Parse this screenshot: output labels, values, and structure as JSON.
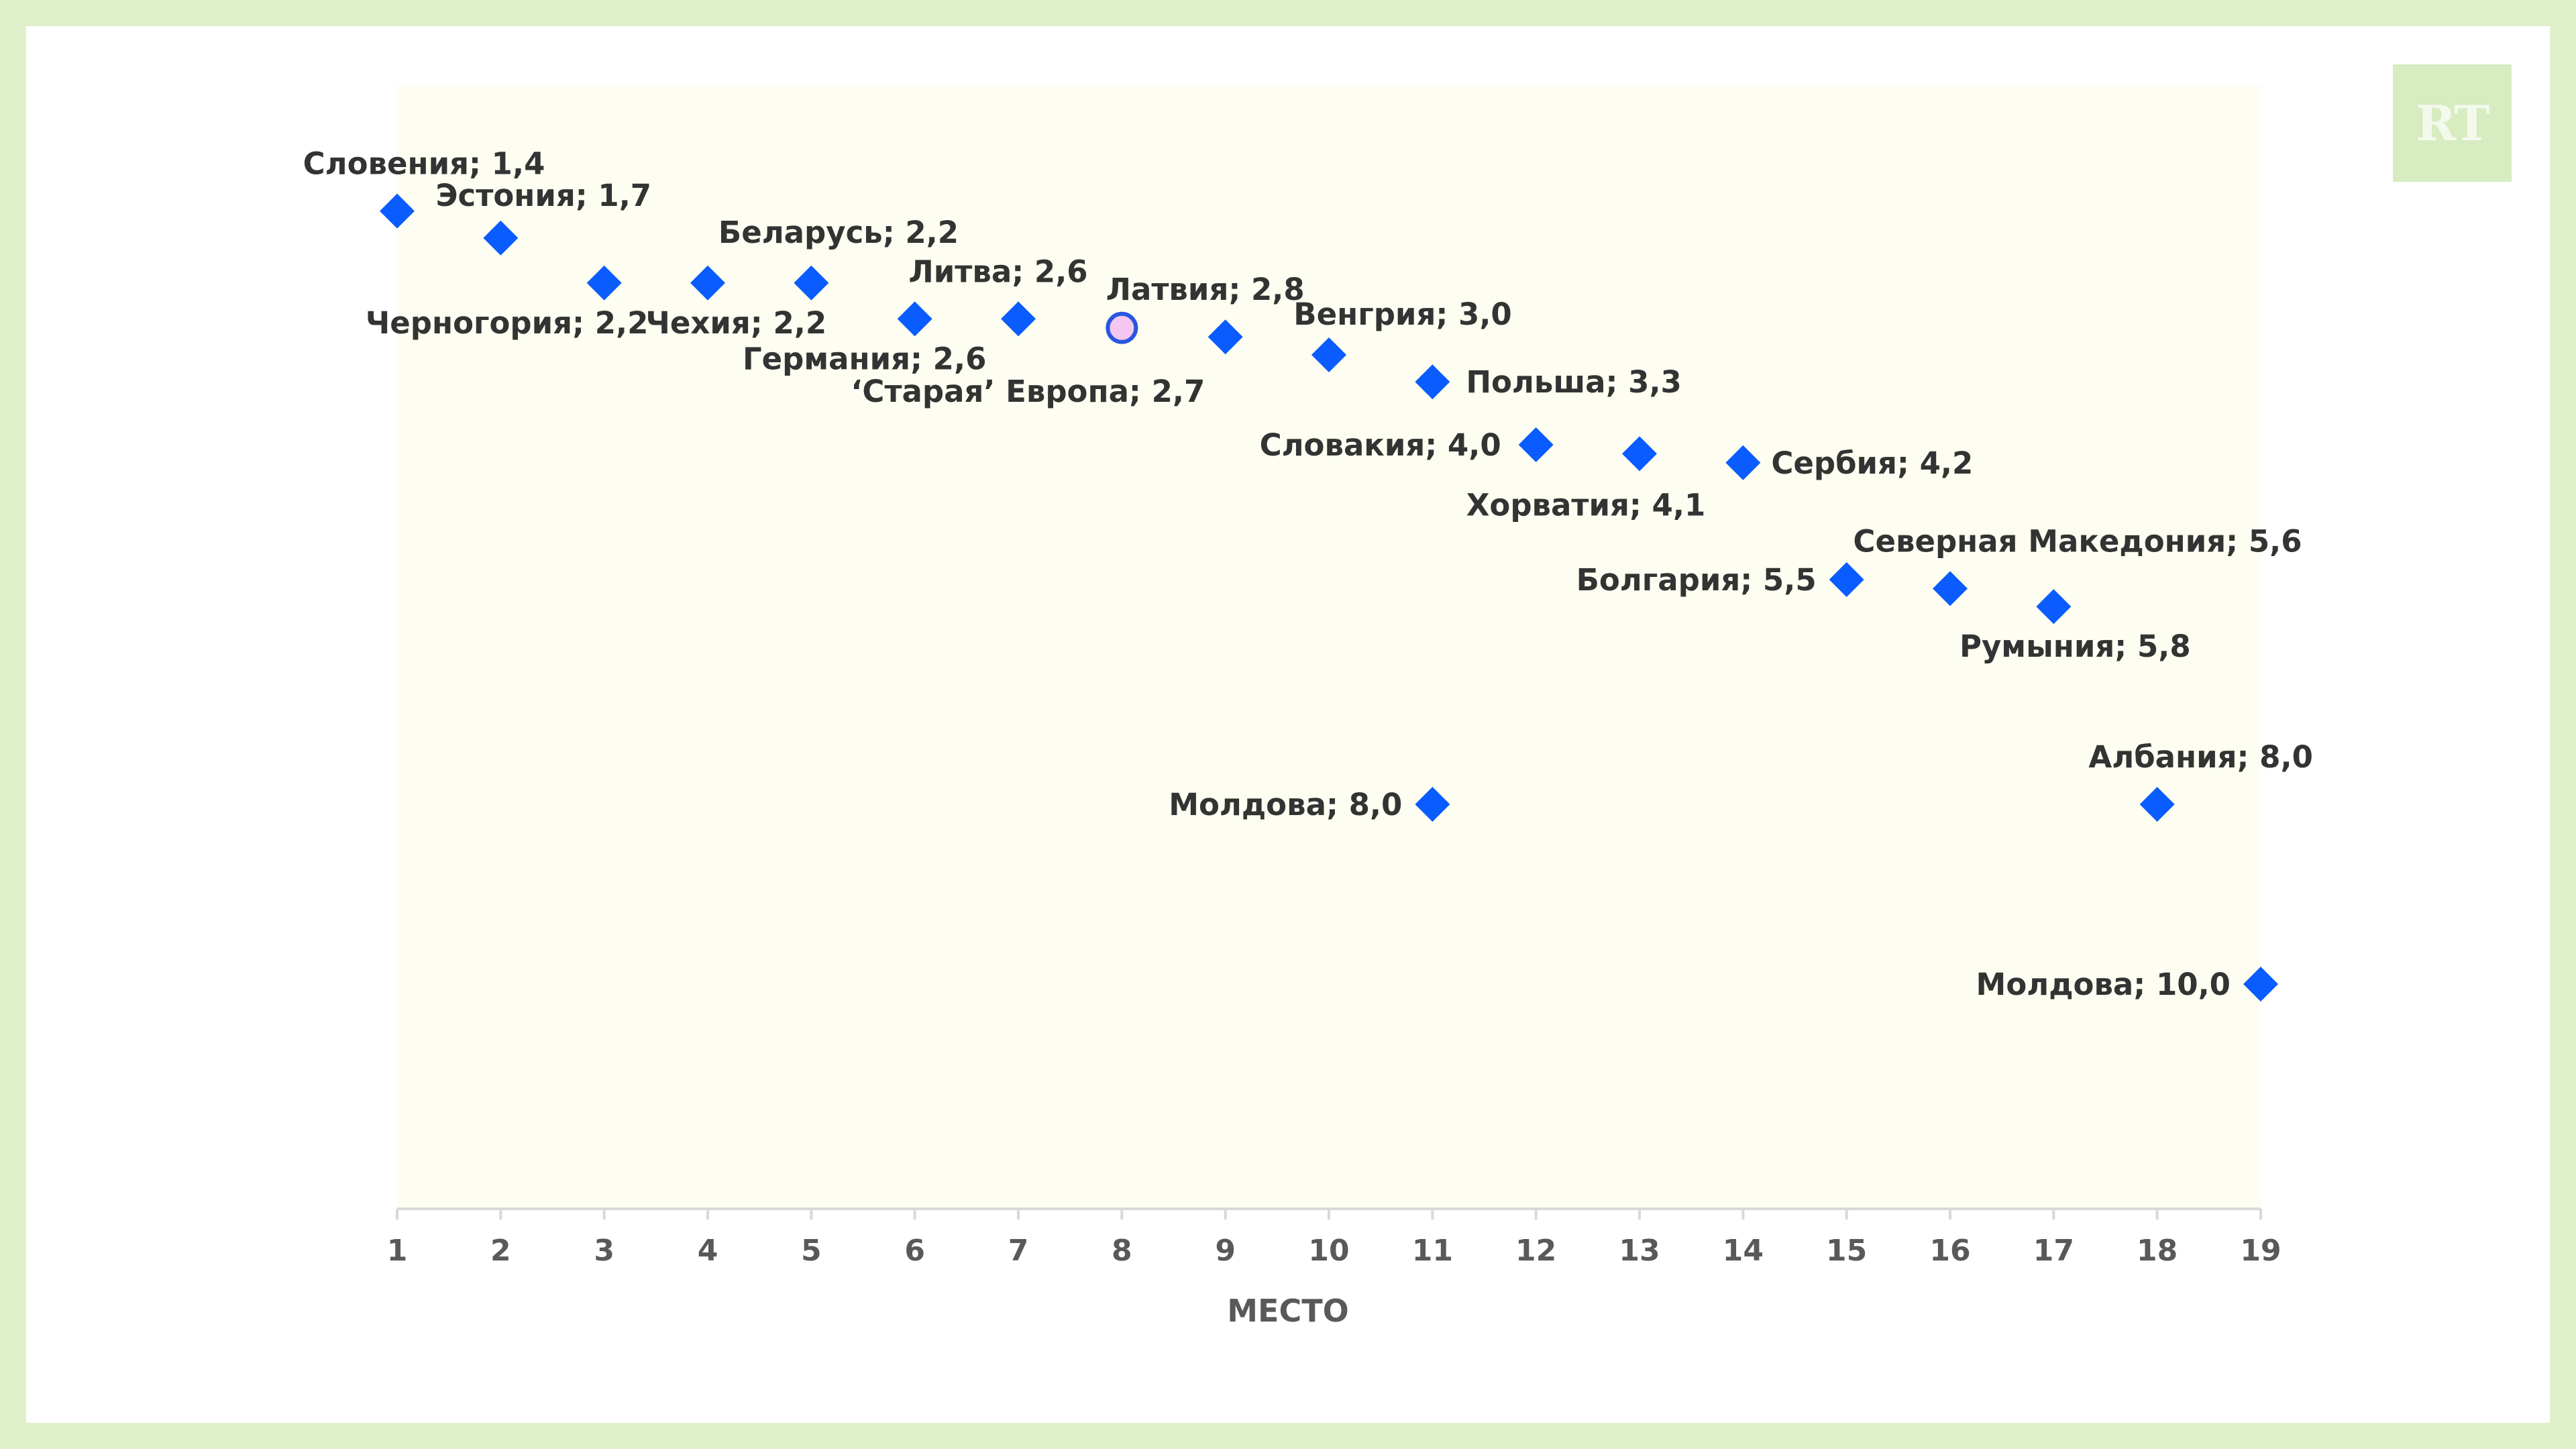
{
  "colors": {
    "outer_background": "#dff0cb",
    "card_background": "#ffffff",
    "plot_background": "#fdfdf1",
    "marker_fill": "#0a5cff",
    "highlight_fill": "#f4c6f0",
    "highlight_stroke": "#2a55e0",
    "axis": "#d9d9d9",
    "label_text": "#333333",
    "tick_text": "#595959",
    "logo_background": "#d7ecc1"
  },
  "logo": {
    "text": "RT"
  },
  "chart_data": {
    "type": "scatter",
    "title": "",
    "xlabel": "МЕСТО",
    "ylabel": "",
    "xlim": [
      1,
      19
    ],
    "ylim": [
      0,
      12.5
    ],
    "y_inverted": true,
    "x_ticks": [
      1,
      2,
      3,
      4,
      5,
      6,
      7,
      8,
      9,
      10,
      11,
      12,
      13,
      14,
      15,
      16,
      17,
      18,
      19
    ],
    "grid": false,
    "legend": "none",
    "points": [
      {
        "x": 1,
        "y": 1.4,
        "label": "Словения; 1,4",
        "marker": "diamond"
      },
      {
        "x": 2,
        "y": 1.7,
        "label": "Эстония; 1,7",
        "marker": "diamond"
      },
      {
        "x": 3,
        "y": 2.2,
        "label": "Черногория; 2,2",
        "marker": "diamond"
      },
      {
        "x": 4,
        "y": 2.2,
        "label": "Беларусь; 2,2",
        "marker": "diamond"
      },
      {
        "x": 5,
        "y": 2.2,
        "label": "Чехия; 2,2",
        "marker": "diamond"
      },
      {
        "x": 6,
        "y": 2.6,
        "label": "Германия; 2,6",
        "marker": "diamond"
      },
      {
        "x": 7,
        "y": 2.6,
        "label": "Литва; 2,6",
        "marker": "diamond"
      },
      {
        "x": 8,
        "y": 2.7,
        "label": "‘Старая’ Европа; 2,7",
        "marker": "circle",
        "highlight": true
      },
      {
        "x": 9,
        "y": 2.8,
        "label": "Латвия; 2,8",
        "marker": "diamond"
      },
      {
        "x": 10,
        "y": 3.0,
        "label": "Венгрия; 3,0",
        "marker": "diamond"
      },
      {
        "x": 11,
        "y": 3.3,
        "label": "Польша; 3,3",
        "marker": "diamond"
      },
      {
        "x": 11,
        "y": 8.0,
        "label": "Молдова; 8,0",
        "marker": "diamond"
      },
      {
        "x": 12,
        "y": 4.0,
        "label": "Словакия; 4,0",
        "marker": "diamond"
      },
      {
        "x": 13,
        "y": 4.1,
        "label": "Хорватия; 4,1",
        "marker": "diamond"
      },
      {
        "x": 14,
        "y": 4.2,
        "label": "Сербия; 4,2",
        "marker": "diamond"
      },
      {
        "x": 15,
        "y": 5.5,
        "label": "Болгария; 5,5",
        "marker": "diamond"
      },
      {
        "x": 16,
        "y": 5.6,
        "label": "Северная Македония; 5,6",
        "marker": "diamond"
      },
      {
        "x": 17,
        "y": 5.8,
        "label": "Румыния; 5,8",
        "marker": "diamond"
      },
      {
        "x": 18,
        "y": 8.0,
        "label": "Албания; 8,0",
        "marker": "diamond"
      },
      {
        "x": 19,
        "y": 10.0,
        "label": "Молдова; 10,0",
        "marker": "diamond"
      }
    ]
  }
}
